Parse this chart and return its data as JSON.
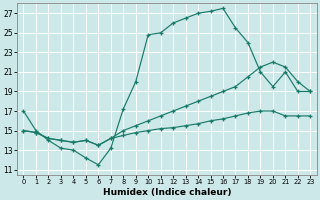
{
  "xlabel": "Humidex (Indice chaleur)",
  "bg_color": "#cce8e8",
  "grid_color": "#ffffff",
  "line_color": "#1a7a6a",
  "xlim": [
    -0.5,
    23.5
  ],
  "ylim": [
    10.5,
    28.0
  ],
  "xticks": [
    0,
    1,
    2,
    3,
    4,
    5,
    6,
    7,
    8,
    9,
    10,
    11,
    12,
    13,
    14,
    15,
    16,
    17,
    18,
    19,
    20,
    21,
    22,
    23
  ],
  "yticks": [
    11,
    13,
    15,
    17,
    19,
    21,
    23,
    25,
    27
  ],
  "line1_x": [
    0,
    1,
    2,
    3,
    4,
    5,
    6,
    7,
    8,
    9,
    10,
    11,
    12,
    13,
    14,
    15,
    16,
    17,
    18,
    19,
    20,
    21,
    22,
    23
  ],
  "line1_y": [
    17.0,
    15.0,
    14.0,
    13.2,
    13.0,
    12.2,
    11.5,
    13.2,
    17.2,
    20.0,
    24.8,
    25.0,
    26.0,
    26.5,
    27.0,
    27.2,
    27.5,
    25.5,
    24.0,
    21.0,
    19.5,
    21.0,
    19.0,
    19.0
  ],
  "line2_x": [
    0,
    1,
    2,
    3,
    4,
    5,
    6,
    7,
    8,
    9,
    10,
    11,
    12,
    13,
    14,
    15,
    16,
    17,
    18,
    19,
    20,
    21,
    22,
    23
  ],
  "line2_y": [
    15.0,
    14.8,
    14.2,
    14.0,
    13.8,
    14.0,
    13.5,
    14.2,
    15.0,
    15.5,
    16.0,
    16.5,
    17.0,
    17.5,
    18.0,
    18.5,
    19.0,
    19.5,
    20.5,
    21.5,
    22.0,
    21.5,
    20.0,
    19.0
  ],
  "line3_x": [
    0,
    1,
    2,
    3,
    4,
    5,
    6,
    7,
    8,
    9,
    10,
    11,
    12,
    13,
    14,
    15,
    16,
    17,
    18,
    19,
    20,
    21,
    22,
    23
  ],
  "line3_y": [
    15.0,
    14.8,
    14.2,
    14.0,
    13.8,
    14.0,
    13.5,
    14.2,
    14.5,
    14.8,
    15.0,
    15.2,
    15.3,
    15.5,
    15.7,
    16.0,
    16.2,
    16.5,
    16.8,
    17.0,
    17.0,
    16.5,
    16.5,
    16.5
  ]
}
